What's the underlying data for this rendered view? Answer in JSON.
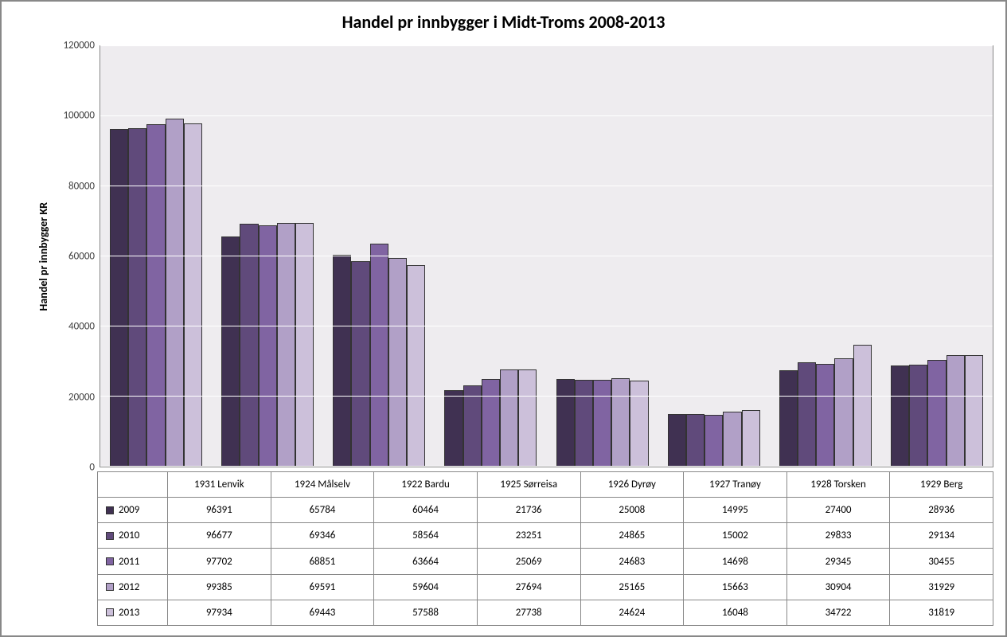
{
  "chart": {
    "type": "grouped-bar",
    "title": "Handel pr innbygger i Midt-Troms 2008-2013",
    "title_fontsize": 22,
    "title_color": "#000000",
    "y_axis_label": "Handel pr innbygger KR",
    "y_axis_label_fontsize": 14,
    "ylim_min": 0,
    "ylim_max": 120000,
    "ytick_step": 20000,
    "y_ticks": [
      0,
      20000,
      40000,
      60000,
      80000,
      100000,
      120000
    ],
    "plot_background": "#eeecef",
    "gridline_color": "#ffffff",
    "border_color": "#888888",
    "outer_border_color": "#888888",
    "categories": [
      "1931 Lenvik",
      "1924 Målselv",
      "1922 Bardu",
      "1925 Sørreisa",
      "1926 Dyrøy",
      "1927 Tranøy",
      "1928 Torsken",
      "1929 Berg"
    ],
    "series": [
      {
        "label": "2009",
        "color": "#403152",
        "values": [
          96391,
          65784,
          60464,
          21736,
          25008,
          14995,
          27400,
          28936
        ]
      },
      {
        "label": "2010",
        "color": "#604a7b",
        "values": [
          96677,
          69346,
          58564,
          23251,
          24865,
          15002,
          29833,
          29134
        ]
      },
      {
        "label": "2011",
        "color": "#8064a2",
        "values": [
          97702,
          68851,
          63664,
          25069,
          24683,
          14698,
          29345,
          30455
        ]
      },
      {
        "label": "2012",
        "color": "#b1a0c7",
        "values": [
          99385,
          69591,
          59604,
          27694,
          25165,
          15663,
          30904,
          31929
        ]
      },
      {
        "label": "2013",
        "color": "#ccc0da",
        "values": [
          97934,
          69443,
          57588,
          27738,
          24624,
          16048,
          34722,
          31819
        ]
      }
    ],
    "bar_border_color": "#333333",
    "tick_font_size": 13,
    "table_font_size": 13
  }
}
